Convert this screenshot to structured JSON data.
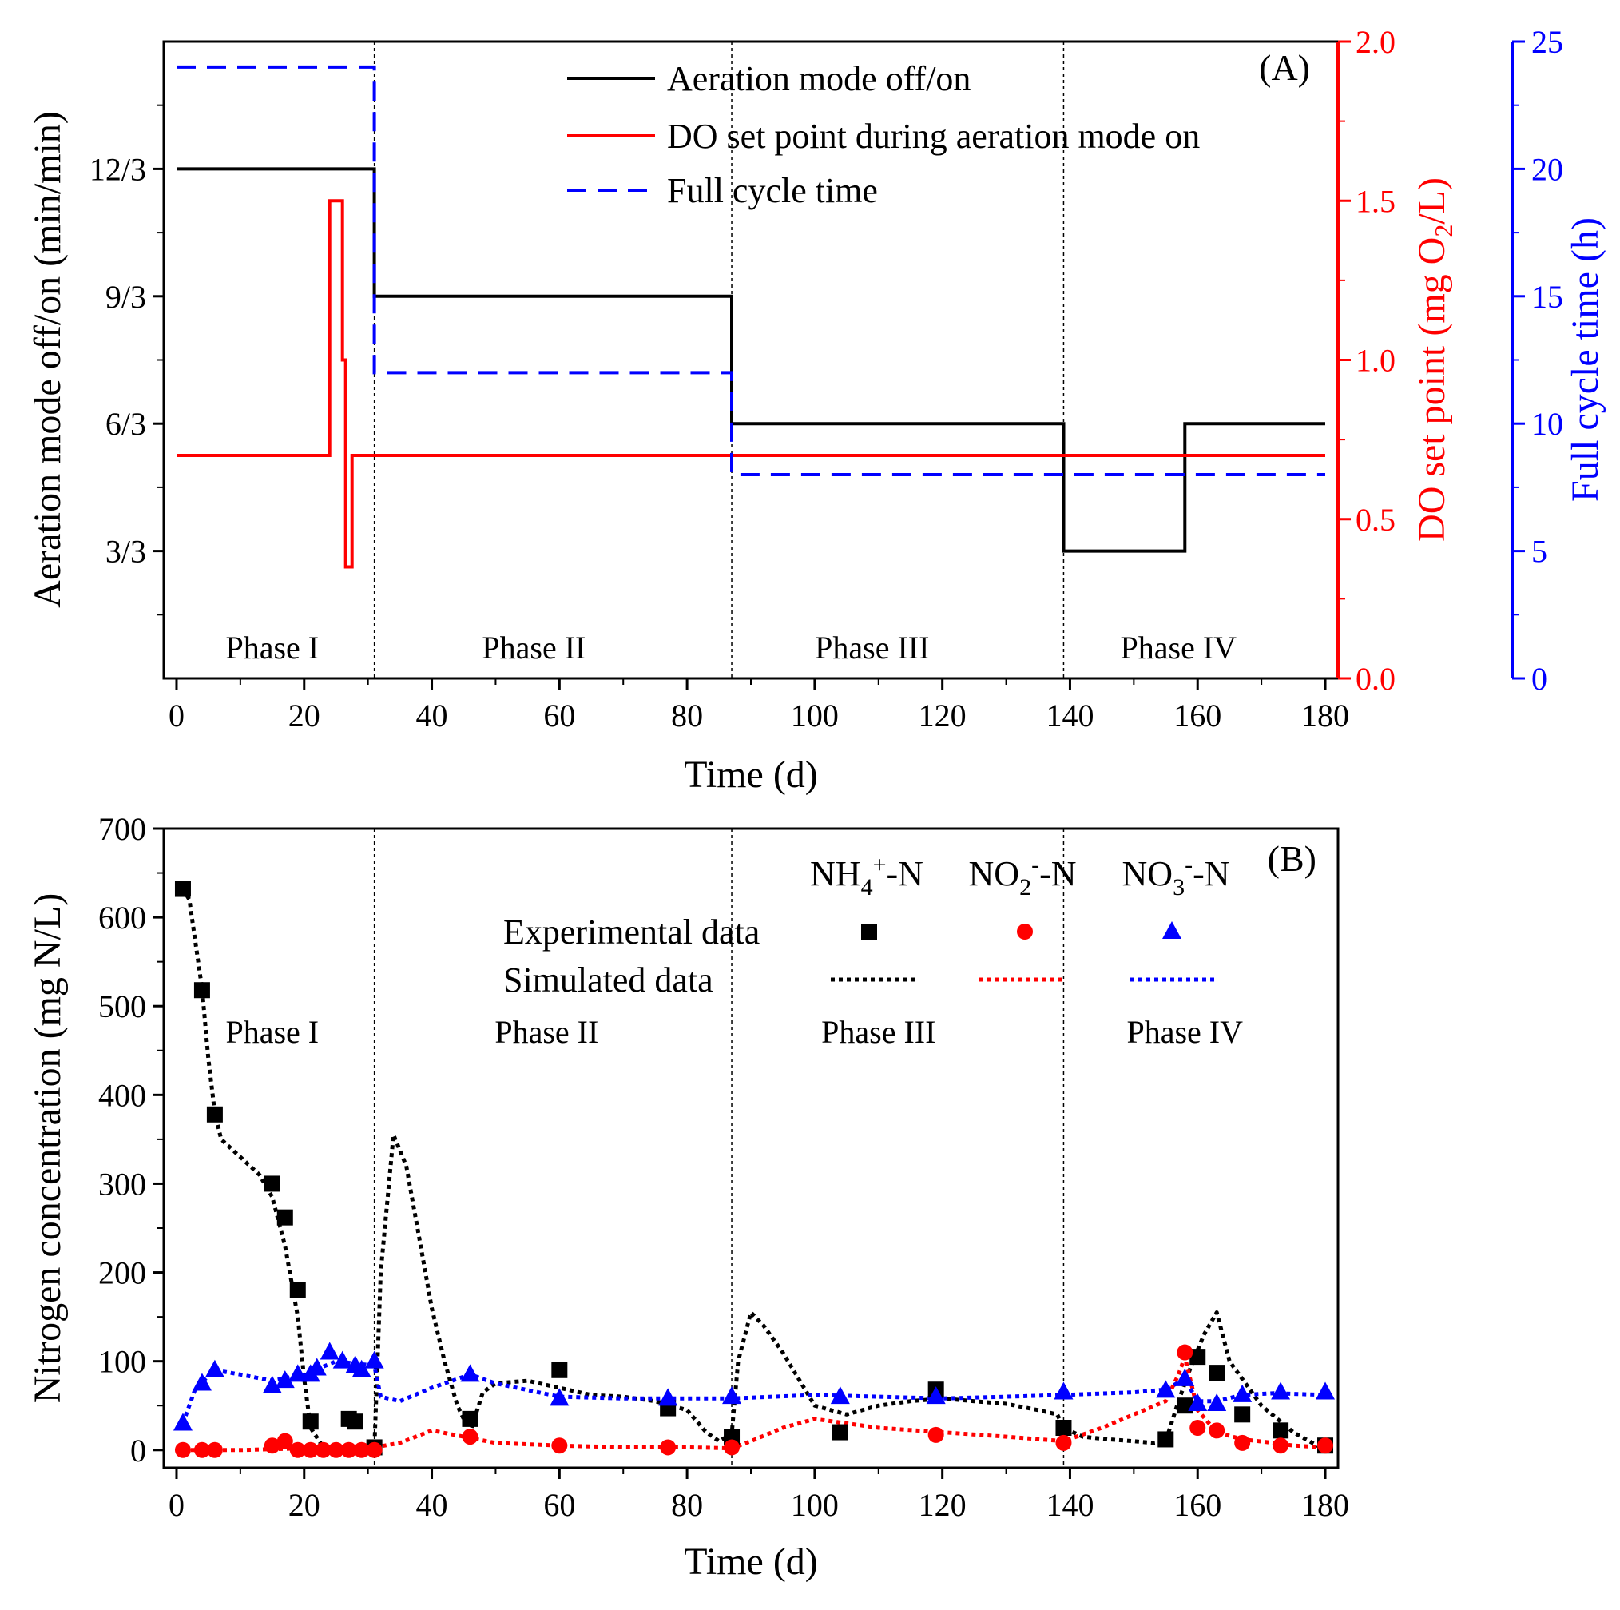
{
  "chart_data": [
    {
      "panel": "(A)",
      "type": "line",
      "xlabel": "Time (d)",
      "xlim": [
        -2,
        182
      ],
      "xticks": [
        0,
        20,
        40,
        60,
        80,
        100,
        120,
        140,
        160,
        180
      ],
      "y_left": {
        "label": "Aeration mode off/on (min/min)",
        "lim": [
          0,
          15
        ],
        "ticks": [
          3,
          6,
          9,
          12
        ],
        "tick_labels": [
          "3/3",
          "6/3",
          "9/3",
          "12/3"
        ]
      },
      "y_right1": {
        "label": "DO set point (mg O2/L)",
        "label_main": "DO set point (mg O",
        "label_sub": "2",
        "label_end": "/L)",
        "lim": [
          0,
          2.0
        ],
        "ticks": [
          0.0,
          0.5,
          1.0,
          1.5,
          2.0
        ],
        "tick_labels": [
          "0.0",
          "0.5",
          "1.0",
          "1.5",
          "2.0"
        ],
        "color": "#ff0000"
      },
      "y_right2": {
        "label": "Full cycle time (h)",
        "lim": [
          0,
          25
        ],
        "ticks": [
          0,
          5,
          10,
          15,
          20,
          25
        ],
        "tick_labels": [
          "0",
          "5",
          "10",
          "15",
          "20",
          "25"
        ],
        "color": "#0000ff"
      },
      "phase_boundaries": [
        31,
        87,
        139
      ],
      "phases": [
        {
          "label": "Phase I",
          "x": 15
        },
        {
          "label": "Phase II",
          "x": 56
        },
        {
          "label": "Phase III",
          "x": 109
        },
        {
          "label": "Phase IV",
          "x": 157
        }
      ],
      "series": [
        {
          "name": "Aeration mode off/on",
          "axis": "left",
          "color": "#000000",
          "style": "solid",
          "x": [
            0,
            31,
            31,
            87,
            87,
            139,
            139,
            158,
            158,
            180
          ],
          "y": [
            12,
            12,
            9,
            9,
            6,
            6,
            3,
            3,
            6,
            6
          ]
        },
        {
          "name": "DO set point during aeration mode on",
          "axis": "right1",
          "color": "#ff0000",
          "style": "solid",
          "x": [
            0,
            24,
            24,
            26,
            26,
            26.5,
            26.5,
            27.5,
            27.5,
            28,
            28,
            180
          ],
          "y": [
            0.7,
            0.7,
            1.5,
            1.5,
            1.0,
            1.0,
            0.35,
            0.35,
            0.7,
            0.7,
            0.7,
            0.7
          ]
        },
        {
          "name": "Full cycle time",
          "axis": "right2",
          "color": "#0000ff",
          "style": "dashed",
          "x": [
            0,
            31,
            31,
            87,
            87,
            180
          ],
          "y": [
            24,
            24,
            12,
            12,
            8,
            8
          ]
        }
      ],
      "legend": {
        "position": "top-right",
        "entries": [
          "Aeration mode off/on",
          "DO set point during aeration mode on",
          "Full cycle time"
        ]
      }
    },
    {
      "panel": "(B)",
      "type": "scatter",
      "xlabel": "Time (d)",
      "ylabel": "Nitrogen concentration (mg N/L)",
      "xlim": [
        -2,
        182
      ],
      "ylim": [
        -20,
        700
      ],
      "xticks": [
        0,
        20,
        40,
        60,
        80,
        100,
        120,
        140,
        160,
        180
      ],
      "yticks": [
        0,
        100,
        200,
        300,
        400,
        500,
        600,
        700
      ],
      "phase_boundaries": [
        31,
        87,
        139
      ],
      "phases": [
        {
          "label": "Phase I",
          "x": 15
        },
        {
          "label": "Phase II",
          "x": 58
        },
        {
          "label": "Phase III",
          "x": 110
        },
        {
          "label": "Phase IV",
          "x": 158
        }
      ],
      "legend": {
        "position": "top-right",
        "species": [
          {
            "main": "NH",
            "sub": "4",
            "sup": "+",
            "end": "-N"
          },
          {
            "main": "NO",
            "sub": "2",
            "sup": "-",
            "end": "-N"
          },
          {
            "main": "NO",
            "sub": "3",
            "sup": "-",
            "end": "-N"
          }
        ],
        "rows": [
          "Experimental data",
          "Simulated data"
        ]
      },
      "experimental": [
        {
          "name": "NH4+-N",
          "color": "#000000",
          "marker": "square",
          "x": [
            1,
            4,
            6,
            15,
            17,
            19,
            21,
            27,
            28,
            31,
            46,
            60,
            77,
            87,
            104,
            119,
            139,
            155,
            158,
            160,
            163,
            167,
            173,
            180
          ],
          "y": [
            632,
            518,
            378,
            300,
            262,
            180,
            32,
            35,
            32,
            3,
            35,
            90,
            47,
            15,
            20,
            68,
            25,
            12,
            50,
            105,
            87,
            40,
            22,
            5
          ]
        },
        {
          "name": "NO2--N",
          "color": "#ff0000",
          "marker": "circle",
          "x": [
            1,
            4,
            6,
            15,
            17,
            19,
            21,
            23,
            25,
            27,
            29,
            31,
            46,
            60,
            77,
            87,
            119,
            139,
            158,
            160,
            163,
            167,
            173,
            180
          ],
          "y": [
            0,
            0,
            0,
            5,
            10,
            0,
            0,
            0,
            0,
            0,
            0,
            0,
            15,
            5,
            3,
            3,
            17,
            8,
            110,
            25,
            22,
            8,
            5,
            5
          ]
        },
        {
          "name": "NO3--N",
          "color": "#0000ff",
          "marker": "triangle",
          "x": [
            1,
            4,
            6,
            15,
            17,
            19,
            21,
            22,
            24,
            26,
            28,
            29,
            31,
            46,
            60,
            77,
            87,
            104,
            119,
            139,
            155,
            158,
            160,
            163,
            167,
            173,
            180
          ],
          "y": [
            30,
            75,
            90,
            72,
            78,
            85,
            85,
            92,
            110,
            100,
            95,
            90,
            100,
            85,
            58,
            58,
            60,
            60,
            60,
            65,
            67,
            80,
            52,
            52,
            62,
            65,
            65
          ]
        }
      ],
      "simulated": [
        {
          "name": "NH4+-N",
          "color": "#000000",
          "x": [
            1,
            2,
            3,
            4,
            5,
            6,
            7,
            10,
            13,
            15,
            17,
            19,
            20,
            21,
            23,
            25,
            28,
            30,
            31,
            32,
            34,
            36,
            38,
            40,
            42,
            44,
            46,
            48,
            50,
            55,
            60,
            65,
            70,
            75,
            80,
            83,
            85,
            87,
            88,
            90,
            92,
            95,
            100,
            105,
            110,
            115,
            120,
            125,
            130,
            135,
            138,
            139,
            142,
            146,
            150,
            153,
            155,
            157,
            159,
            161,
            163,
            165,
            170,
            175,
            180
          ],
          "y": [
            632,
            620,
            570,
            520,
            440,
            380,
            350,
            330,
            310,
            285,
            230,
            150,
            80,
            25,
            3,
            0,
            0,
            0,
            0,
            200,
            355,
            320,
            240,
            160,
            100,
            50,
            20,
            65,
            75,
            78,
            70,
            62,
            60,
            55,
            45,
            20,
            10,
            18,
            100,
            155,
            140,
            110,
            50,
            40,
            50,
            55,
            58,
            55,
            52,
            45,
            40,
            25,
            15,
            12,
            10,
            8,
            10,
            55,
            95,
            130,
            155,
            100,
            50,
            20,
            0
          ]
        },
        {
          "name": "NO2--N",
          "color": "#ff0000",
          "x": [
            1,
            10,
            20,
            30,
            31,
            35,
            40,
            45,
            50,
            60,
            70,
            80,
            87,
            90,
            95,
            100,
            105,
            110,
            120,
            130,
            139,
            145,
            150,
            155,
            157,
            158,
            160,
            163,
            167,
            172,
            175,
            180
          ],
          "y": [
            0,
            0,
            2,
            2,
            3,
            8,
            22,
            15,
            8,
            5,
            3,
            3,
            2,
            10,
            25,
            35,
            30,
            25,
            20,
            15,
            10,
            25,
            40,
            55,
            85,
            105,
            45,
            20,
            12,
            8,
            5,
            3
          ]
        },
        {
          "name": "NO3--N",
          "color": "#0000ff",
          "x": [
            1,
            3,
            6,
            10,
            15,
            20,
            25,
            31,
            32,
            35,
            40,
            46,
            50,
            60,
            70,
            80,
            87,
            100,
            110,
            120,
            130,
            139,
            150,
            155,
            158,
            160,
            163,
            167,
            172,
            180
          ],
          "y": [
            30,
            70,
            90,
            85,
            78,
            85,
            100,
            95,
            60,
            55,
            70,
            85,
            75,
            60,
            58,
            58,
            58,
            62,
            60,
            58,
            60,
            62,
            65,
            68,
            80,
            55,
            55,
            62,
            64,
            62
          ]
        }
      ]
    }
  ]
}
